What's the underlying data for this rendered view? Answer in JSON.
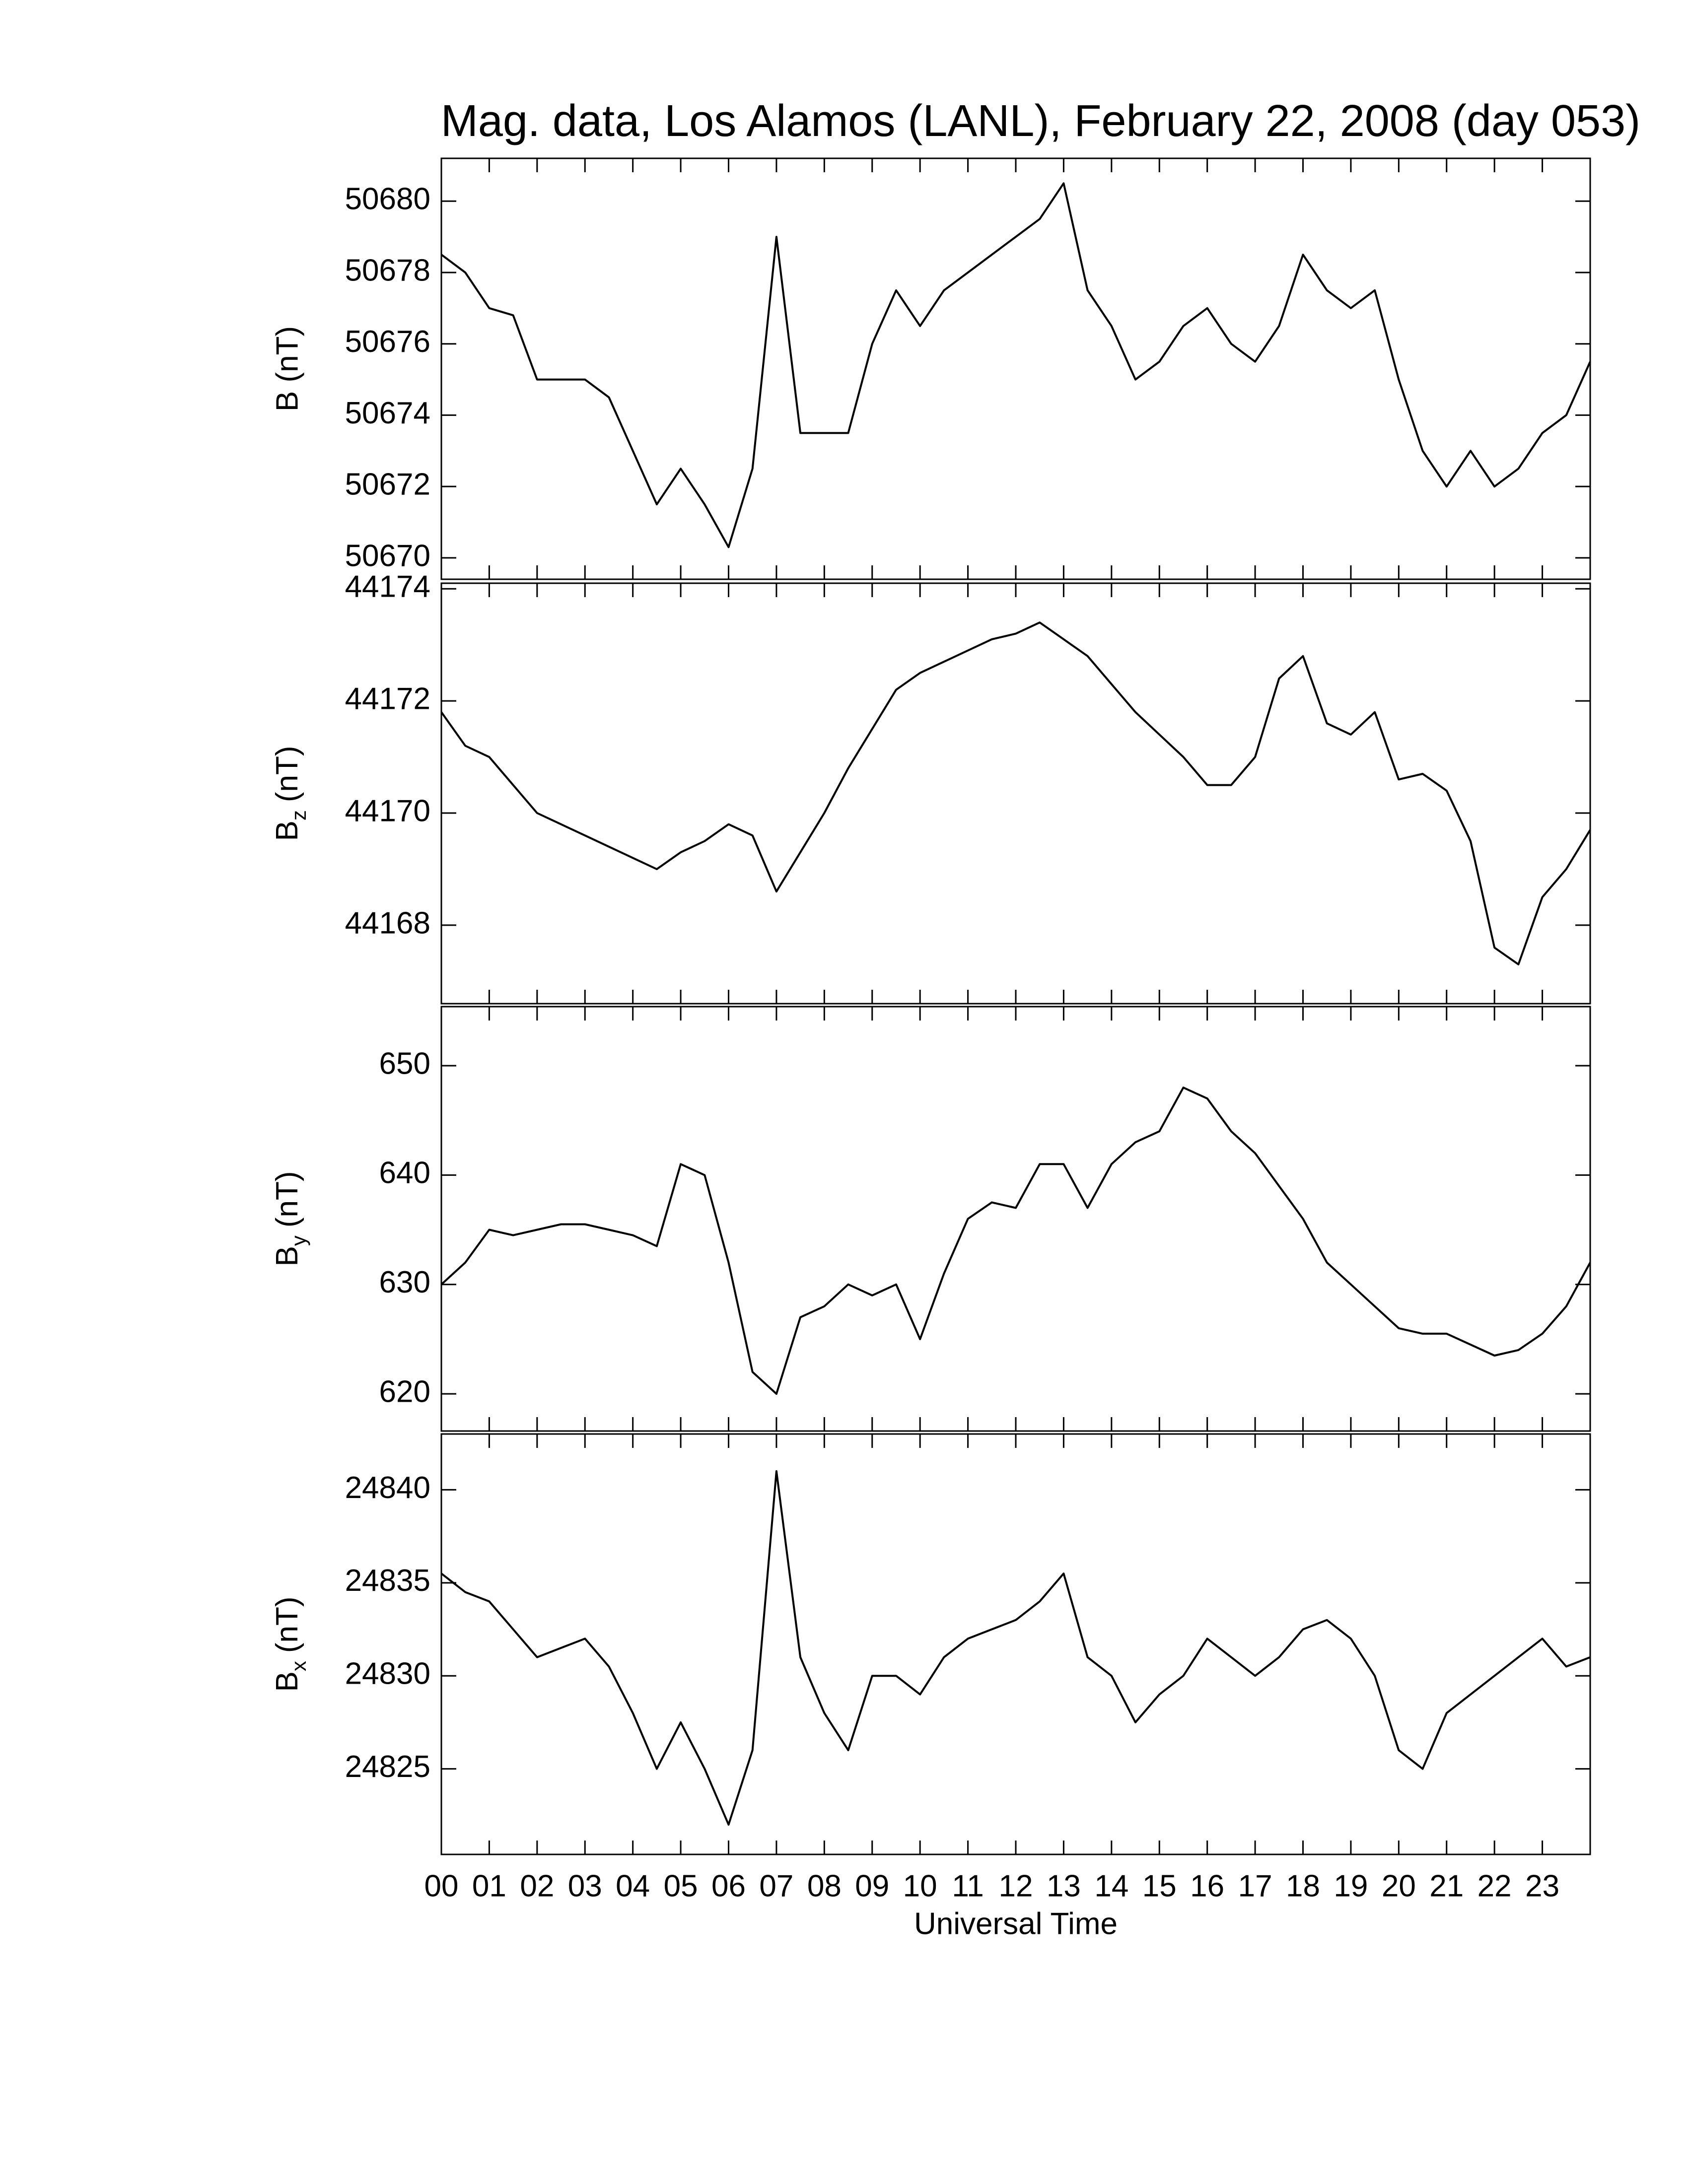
{
  "chart_data": [
    {
      "type": "line",
      "title": "Mag. data, Los Alamos (LANL), February 22, 2008 (day 053)",
      "ylabel": "B (nT)",
      "x": [
        0,
        0.5,
        1,
        1.5,
        2,
        2.5,
        3,
        3.5,
        4,
        4.5,
        5,
        5.5,
        6,
        6.5,
        7,
        7.5,
        8,
        8.5,
        9,
        9.5,
        10,
        10.5,
        11,
        11.5,
        12,
        12.5,
        13,
        13.5,
        14,
        14.5,
        15,
        15.5,
        16,
        16.5,
        17,
        17.5,
        18,
        18.5,
        19,
        19.5,
        20,
        20.5,
        21,
        21.5,
        22,
        22.5,
        23,
        23.5,
        24
      ],
      "series": [
        {
          "color": "#000000",
          "values": [
            50678.5,
            50678,
            50677,
            50676.8,
            50675,
            50675,
            50675,
            50674.5,
            50673,
            50671.5,
            50672.5,
            50671.5,
            50670.3,
            50672.5,
            50679,
            50673.5,
            50673.5,
            50673.5,
            50676,
            50677.5,
            50676.5,
            50677.5,
            50678,
            50678.5,
            50679,
            50679.5,
            50680.5,
            50677.5,
            50676.5,
            50675,
            50675.5,
            50676.5,
            50677,
            50676,
            50675.5,
            50676.5,
            50678.5,
            50677.5,
            50677,
            50677.5,
            50675,
            50673,
            50672,
            50673,
            50672,
            50672.5,
            50673.5,
            50674,
            50675.5
          ]
        }
      ],
      "xlim": [
        0,
        24
      ],
      "xticks": [
        0,
        1,
        2,
        3,
        4,
        5,
        6,
        7,
        8,
        9,
        10,
        11,
        12,
        13,
        14,
        15,
        16,
        17,
        18,
        19,
        20,
        21,
        22,
        23
      ],
      "ylim": [
        50669.4,
        50681.2
      ],
      "yticks": [
        50670,
        50672,
        50674,
        50676,
        50678,
        50680
      ]
    },
    {
      "type": "line",
      "ylabel": {
        "base": "B",
        "sub": "z",
        "unit": "(nT)"
      },
      "x": [
        0,
        0.5,
        1,
        1.5,
        2,
        2.5,
        3,
        3.5,
        4,
        4.5,
        5,
        5.5,
        6,
        6.5,
        7,
        7.5,
        8,
        8.5,
        9,
        9.5,
        10,
        10.5,
        11,
        11.5,
        12,
        12.5,
        13,
        13.5,
        14,
        14.5,
        15,
        15.5,
        16,
        16.5,
        17,
        17.5,
        18,
        18.5,
        19,
        19.5,
        20,
        20.5,
        21,
        21.5,
        22,
        22.5,
        23,
        23.5,
        24
      ],
      "series": [
        {
          "color": "#000000",
          "values": [
            44171.8,
            44171.2,
            44171,
            44170.5,
            44170,
            44169.8,
            44169.6,
            44169.4,
            44169.2,
            44169,
            44169.3,
            44169.5,
            44169.8,
            44169.6,
            44168.6,
            44169.3,
            44170,
            44170.8,
            44171.5,
            44172.2,
            44172.5,
            44172.7,
            44172.9,
            44173.1,
            44173.2,
            44173.4,
            44173.1,
            44172.8,
            44172.3,
            44171.8,
            44171.4,
            44171,
            44170.5,
            44170.5,
            44171,
            44172.4,
            44172.8,
            44171.6,
            44171.4,
            44171.8,
            44170.6,
            44170.7,
            44170.4,
            44169.5,
            44167.6,
            44167.3,
            44168.5,
            44169,
            44169.7
          ]
        }
      ],
      "xlim": [
        0,
        24
      ],
      "xticks": [
        0,
        1,
        2,
        3,
        4,
        5,
        6,
        7,
        8,
        9,
        10,
        11,
        12,
        13,
        14,
        15,
        16,
        17,
        18,
        19,
        20,
        21,
        22,
        23
      ],
      "ylim": [
        44166.6,
        44174.1
      ],
      "yticks": [
        44168,
        44170,
        44172,
        44174
      ]
    },
    {
      "type": "line",
      "ylabel": {
        "base": "B",
        "sub": "y",
        "unit": "(nT)"
      },
      "x": [
        0,
        0.5,
        1,
        1.5,
        2,
        2.5,
        3,
        3.5,
        4,
        4.5,
        5,
        5.5,
        6,
        6.5,
        7,
        7.5,
        8,
        8.5,
        9,
        9.5,
        10,
        10.5,
        11,
        11.5,
        12,
        12.5,
        13,
        13.5,
        14,
        14.5,
        15,
        15.5,
        16,
        16.5,
        17,
        17.5,
        18,
        18.5,
        19,
        19.5,
        20,
        20.5,
        21,
        21.5,
        22,
        22.5,
        23,
        23.5,
        24
      ],
      "series": [
        {
          "color": "#000000",
          "values": [
            630,
            632,
            635,
            634.5,
            635,
            635.5,
            635.5,
            635,
            634.5,
            633.5,
            641,
            640,
            632,
            622,
            620,
            627,
            628,
            630,
            629,
            630,
            625,
            631,
            636,
            637.5,
            637,
            641,
            641,
            637,
            641,
            643,
            644,
            648,
            647,
            644,
            642,
            639,
            636,
            632,
            630,
            628,
            626,
            625.5,
            625.5,
            624.5,
            623.5,
            624,
            625.5,
            628,
            632
          ]
        }
      ],
      "xlim": [
        0,
        24
      ],
      "xticks": [
        0,
        1,
        2,
        3,
        4,
        5,
        6,
        7,
        8,
        9,
        10,
        11,
        12,
        13,
        14,
        15,
        16,
        17,
        18,
        19,
        20,
        21,
        22,
        23
      ],
      "ylim": [
        616.6,
        655.4
      ],
      "yticks": [
        620,
        630,
        640,
        650
      ]
    },
    {
      "type": "line",
      "ylabel": {
        "base": "B",
        "sub": "x",
        "unit": "(nT)"
      },
      "xlabel": "Universal Time",
      "x": [
        0,
        0.5,
        1,
        1.5,
        2,
        2.5,
        3,
        3.5,
        4,
        4.5,
        5,
        5.5,
        6,
        6.5,
        7,
        7.5,
        8,
        8.5,
        9,
        9.5,
        10,
        10.5,
        11,
        11.5,
        12,
        12.5,
        13,
        13.5,
        14,
        14.5,
        15,
        15.5,
        16,
        16.5,
        17,
        17.5,
        18,
        18.5,
        19,
        19.5,
        20,
        20.5,
        21,
        21.5,
        22,
        22.5,
        23,
        23.5,
        24
      ],
      "series": [
        {
          "color": "#000000",
          "values": [
            24835.5,
            24834.5,
            24834,
            24832.5,
            24831,
            24831.5,
            24832,
            24830.5,
            24828,
            24825,
            24827.5,
            24825,
            24822,
            24826,
            24841,
            24831,
            24828,
            24826,
            24830,
            24830,
            24829,
            24831,
            24832,
            24832.5,
            24833,
            24834,
            24835.5,
            24831,
            24830,
            24827.5,
            24829,
            24830,
            24832,
            24831,
            24830,
            24831,
            24832.5,
            24833,
            24832,
            24830,
            24826,
            24825,
            24828,
            24829,
            24830,
            24831,
            24832,
            24830.5,
            24831
          ]
        }
      ],
      "xlim": [
        0,
        24
      ],
      "xticks": [
        {
          "value": 0,
          "label": "00"
        },
        {
          "value": 1,
          "label": "01"
        },
        {
          "value": 2,
          "label": "02"
        },
        {
          "value": 3,
          "label": "03"
        },
        {
          "value": 4,
          "label": "04"
        },
        {
          "value": 5,
          "label": "05"
        },
        {
          "value": 6,
          "label": "06"
        },
        {
          "value": 7,
          "label": "07"
        },
        {
          "value": 8,
          "label": "08"
        },
        {
          "value": 9,
          "label": "09"
        },
        {
          "value": 10,
          "label": "10"
        },
        {
          "value": 11,
          "label": "11"
        },
        {
          "value": 12,
          "label": "12"
        },
        {
          "value": 13,
          "label": "13"
        },
        {
          "value": 14,
          "label": "14"
        },
        {
          "value": 15,
          "label": "15"
        },
        {
          "value": 16,
          "label": "16"
        },
        {
          "value": 17,
          "label": "17"
        },
        {
          "value": 18,
          "label": "18"
        },
        {
          "value": 19,
          "label": "19"
        },
        {
          "value": 20,
          "label": "20"
        },
        {
          "value": 21,
          "label": "21"
        },
        {
          "value": 22,
          "label": "22"
        },
        {
          "value": 23,
          "label": "23"
        }
      ],
      "ylim": [
        24820.4,
        24843
      ],
      "yticks": [
        24825,
        24830,
        24835,
        24840
      ]
    }
  ]
}
